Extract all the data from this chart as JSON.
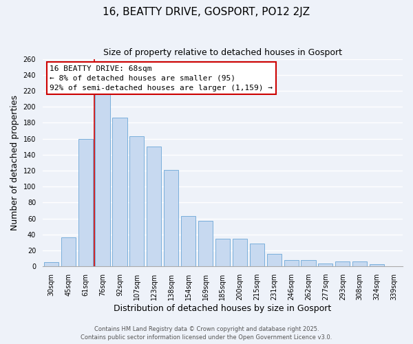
{
  "title": "16, BEATTY DRIVE, GOSPORT, PO12 2JZ",
  "subtitle": "Size of property relative to detached houses in Gosport",
  "xlabel": "Distribution of detached houses by size in Gosport",
  "ylabel": "Number of detached properties",
  "bar_labels": [
    "30sqm",
    "45sqm",
    "61sqm",
    "76sqm",
    "92sqm",
    "107sqm",
    "123sqm",
    "138sqm",
    "154sqm",
    "169sqm",
    "185sqm",
    "200sqm",
    "215sqm",
    "231sqm",
    "246sqm",
    "262sqm",
    "277sqm",
    "293sqm",
    "308sqm",
    "324sqm",
    "339sqm"
  ],
  "bar_values": [
    5,
    36,
    160,
    218,
    186,
    163,
    150,
    121,
    63,
    57,
    35,
    35,
    29,
    16,
    8,
    8,
    4,
    6,
    6,
    3,
    0
  ],
  "bar_color": "#c7d9f0",
  "bar_edge_color": "#7aafdb",
  "vline_color": "#cc0000",
  "vline_x": 2.5,
  "annotation_line1": "16 BEATTY DRIVE: 68sqm",
  "annotation_line2": "← 8% of detached houses are smaller (95)",
  "annotation_line3": "92% of semi-detached houses are larger (1,159) →",
  "box_edge_color": "#cc0000",
  "box_face_color": "white",
  "ylim": [
    0,
    260
  ],
  "yticks": [
    0,
    20,
    40,
    60,
    80,
    100,
    120,
    140,
    160,
    180,
    200,
    220,
    240,
    260
  ],
  "footer_line1": "Contains HM Land Registry data © Crown copyright and database right 2025.",
  "footer_line2": "Contains public sector information licensed under the Open Government Licence v3.0.",
  "bg_color": "#eef2f9",
  "grid_color": "white",
  "title_fontsize": 11,
  "axis_label_fontsize": 9,
  "tick_fontsize": 7,
  "annotation_fontsize": 8,
  "footer_fontsize": 6
}
